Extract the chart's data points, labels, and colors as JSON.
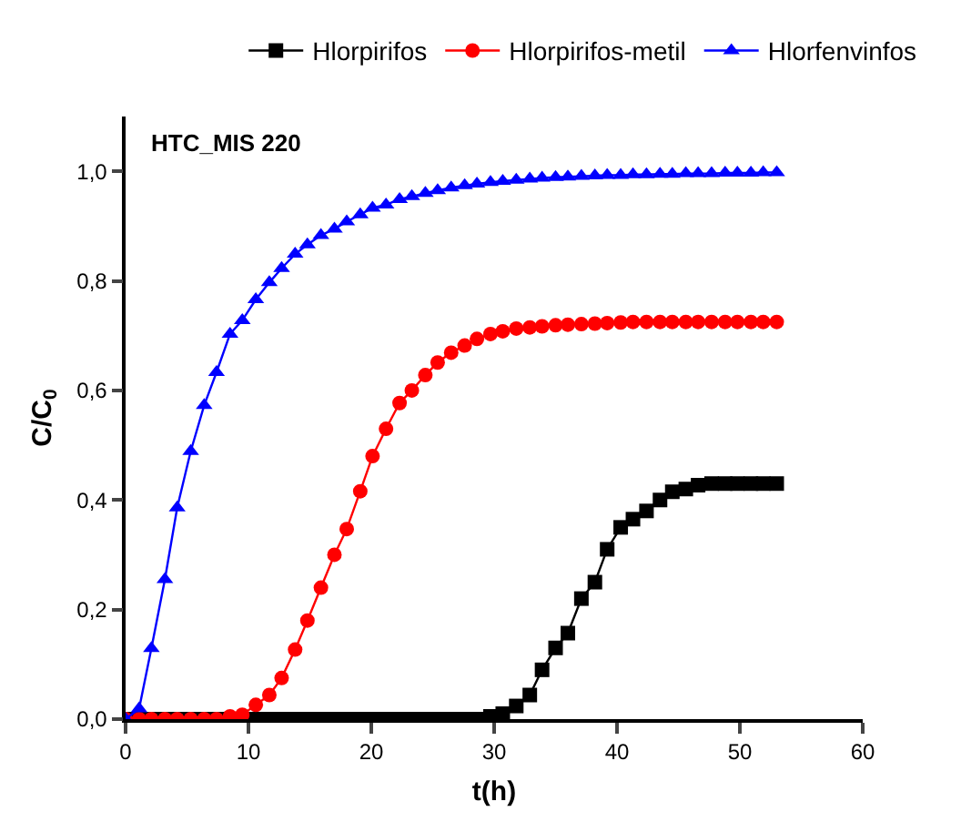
{
  "chart_data": {
    "type": "line",
    "xlabel": "t(h)",
    "ylabel": "C/C$_{0}$",
    "annotations": [
      "HTC_MIS 220"
    ],
    "x": [
      0,
      1.1,
      2.1,
      3.2,
      4.2,
      5.3,
      6.4,
      7.4,
      8.5,
      9.5,
      10.6,
      11.7,
      12.7,
      13.8,
      14.8,
      15.9,
      17.0,
      18.0,
      19.1,
      20.1,
      21.2,
      22.3,
      23.3,
      24.4,
      25.4,
      26.5,
      27.6,
      28.6,
      29.7,
      30.7,
      31.8,
      32.9,
      33.9,
      35.0,
      36.0,
      37.1,
      38.2,
      39.2,
      40.3,
      41.3,
      42.4,
      43.5,
      44.5,
      45.6,
      46.6,
      47.7,
      48.8,
      49.8,
      50.9,
      51.9,
      53.0
    ],
    "series": [
      {
        "name": "Hlorpirifos",
        "color": "#000000",
        "marker": "square",
        "values": [
          0,
          0,
          0,
          0,
          0,
          0,
          0,
          0,
          0,
          0,
          0,
          0,
          0,
          0,
          0,
          0,
          0,
          0,
          0,
          0,
          0,
          0,
          0,
          0,
          0,
          0,
          0,
          0,
          0.005,
          0.01,
          0.024,
          0.044,
          0.09,
          0.13,
          0.157,
          0.22,
          0.25,
          0.31,
          0.35,
          0.365,
          0.38,
          0.4,
          0.415,
          0.42,
          0.427,
          0.43,
          0.43,
          0.43,
          0.43,
          0.43,
          0.43
        ]
      },
      {
        "name": "Hlorpirifos-metil",
        "color": "#ff0000",
        "marker": "circle",
        "values": [
          0,
          0,
          0,
          0,
          0,
          0,
          0,
          0,
          0.005,
          0.008,
          0.026,
          0.044,
          0.075,
          0.127,
          0.18,
          0.24,
          0.3,
          0.347,
          0.416,
          0.48,
          0.53,
          0.577,
          0.6,
          0.628,
          0.651,
          0.669,
          0.682,
          0.694,
          0.703,
          0.708,
          0.713,
          0.715,
          0.717,
          0.719,
          0.72,
          0.721,
          0.722,
          0.723,
          0.724,
          0.725,
          0.725,
          0.725,
          0.725,
          0.725,
          0.725,
          0.725,
          0.725,
          0.725,
          0.725,
          0.725,
          0.725
        ]
      },
      {
        "name": "Hlorfenvinfos",
        "color": "#0000ff",
        "marker": "triangle",
        "values": [
          0,
          0.019,
          0.129,
          0.255,
          0.386,
          0.489,
          0.573,
          0.633,
          0.703,
          0.728,
          0.766,
          0.797,
          0.823,
          0.849,
          0.866,
          0.883,
          0.895,
          0.908,
          0.921,
          0.933,
          0.939,
          0.949,
          0.954,
          0.96,
          0.965,
          0.97,
          0.974,
          0.977,
          0.98,
          0.982,
          0.984,
          0.986,
          0.988,
          0.989,
          0.99,
          0.991,
          0.992,
          0.993,
          0.993,
          0.994,
          0.994,
          0.995,
          0.995,
          0.996,
          0.996,
          0.996,
          0.997,
          0.997,
          0.997,
          0.998,
          0.998
        ]
      }
    ],
    "xlim": [
      0,
      60
    ],
    "xticks": [
      0,
      10,
      20,
      30,
      40,
      50,
      60
    ],
    "ylim": [
      0,
      1.1
    ],
    "yticks": [
      {
        "value": 0,
        "label": "0,0"
      },
      {
        "value": 0.2,
        "label": "0,2"
      },
      {
        "value": 0.4,
        "label": "0,4"
      },
      {
        "value": 0.6,
        "label": "0,6"
      },
      {
        "value": 0.8,
        "label": "0,8"
      },
      {
        "value": 1.0,
        "label": "1,0"
      }
    ],
    "grid": false,
    "legend": "top",
    "line_style": "solid"
  }
}
